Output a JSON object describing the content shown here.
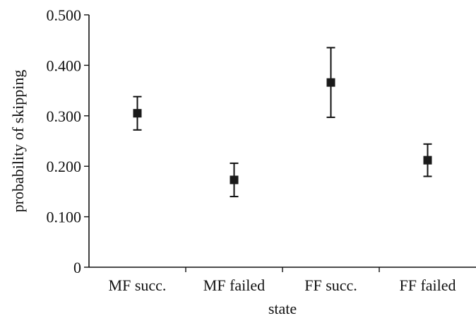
{
  "chart_data": {
    "type": "scatter",
    "title": "",
    "xlabel": "state",
    "ylabel": "probability of skipping",
    "categories": [
      "MF succ.",
      "MF failed",
      "FF succ.",
      "FF failed"
    ],
    "series": [
      {
        "values": [
          0.305,
          0.173,
          0.366,
          0.212
        ],
        "error_low": [
          0.272,
          0.14,
          0.297,
          0.18
        ],
        "error_high": [
          0.338,
          0.206,
          0.435,
          0.244
        ],
        "marker": "square",
        "color": "#1a1a1a"
      }
    ],
    "ylim": [
      0,
      0.5
    ],
    "yticks": [
      "0",
      "0.100",
      "0.200",
      "0.300",
      "0.400",
      "0.500"
    ],
    "ytick_values": [
      0,
      0.1,
      0.2,
      0.3,
      0.4,
      0.5
    ],
    "grid": false,
    "legend": "none"
  }
}
